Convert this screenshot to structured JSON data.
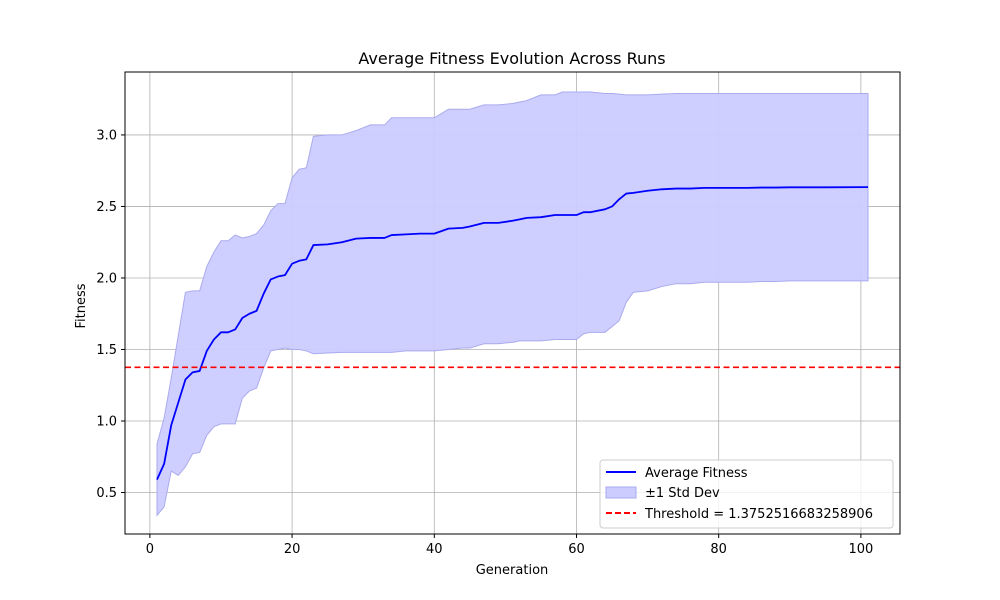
{
  "chart_data": {
    "type": "line",
    "title": "Average Fitness Evolution Across Runs",
    "xlabel": "Generation",
    "ylabel": "Fitness",
    "xlim": [
      -3.5,
      105.5
    ],
    "ylim": [
      0.21,
      3.44
    ],
    "xticks": [
      0,
      20,
      40,
      60,
      80,
      100
    ],
    "xtick_labels": [
      "0",
      "20",
      "40",
      "60",
      "80",
      "100"
    ],
    "yticks": [
      0.5,
      1.0,
      1.5,
      2.0,
      2.5,
      3.0
    ],
    "ytick_labels": [
      "0.5",
      "1.0",
      "1.5",
      "2.0",
      "2.5",
      "3.0"
    ],
    "grid": true,
    "legend_position": "lower-right",
    "colors": {
      "mean": "#0000ff",
      "band": "#ccccff",
      "band_edge": "#aaaaee",
      "threshold": "#ff0000"
    },
    "series": [
      {
        "name": "Average Fitness",
        "type": "line",
        "x": [
          1,
          2,
          3,
          4,
          5,
          6,
          7,
          8,
          9,
          10,
          11,
          12,
          13,
          14,
          15,
          16,
          17,
          18,
          19,
          20,
          21,
          22,
          23,
          25,
          27,
          29,
          31,
          33,
          34,
          36,
          38,
          40,
          42,
          44,
          45,
          47,
          49,
          51,
          52,
          53,
          55,
          57,
          58,
          60,
          61,
          62,
          64,
          65,
          66,
          67,
          68,
          70,
          72,
          74,
          76,
          78,
          80,
          82,
          84,
          86,
          88,
          90,
          95,
          101
        ],
        "y": [
          0.59,
          0.7,
          0.97,
          1.13,
          1.29,
          1.34,
          1.35,
          1.49,
          1.57,
          1.62,
          1.62,
          1.64,
          1.72,
          1.75,
          1.77,
          1.89,
          1.99,
          2.01,
          2.02,
          2.1,
          2.12,
          2.13,
          2.23,
          2.235,
          2.25,
          2.275,
          2.28,
          2.28,
          2.3,
          2.305,
          2.31,
          2.31,
          2.345,
          2.35,
          2.36,
          2.385,
          2.385,
          2.4,
          2.41,
          2.42,
          2.425,
          2.44,
          2.44,
          2.44,
          2.46,
          2.46,
          2.48,
          2.5,
          2.55,
          2.59,
          2.595,
          2.61,
          2.62,
          2.625,
          2.625,
          2.63,
          2.63,
          2.63,
          2.63,
          2.632,
          2.632,
          2.634,
          2.634,
          2.635
        ]
      },
      {
        "name": "±1 Std Dev",
        "type": "band",
        "x": [
          1,
          2,
          3,
          4,
          5,
          6,
          7,
          8,
          9,
          10,
          11,
          12,
          13,
          14,
          15,
          16,
          17,
          18,
          19,
          20,
          21,
          22,
          23,
          25,
          27,
          29,
          31,
          33,
          34,
          36,
          38,
          40,
          42,
          44,
          45,
          47,
          49,
          51,
          52,
          53,
          55,
          57,
          58,
          60,
          61,
          62,
          64,
          65,
          66,
          67,
          68,
          70,
          72,
          74,
          76,
          78,
          80,
          82,
          84,
          86,
          88,
          90,
          95,
          101
        ],
        "lower": [
          0.34,
          0.4,
          0.65,
          0.62,
          0.68,
          0.77,
          0.78,
          0.9,
          0.96,
          0.98,
          0.98,
          0.98,
          1.16,
          1.21,
          1.23,
          1.37,
          1.49,
          1.5,
          1.51,
          1.5,
          1.5,
          1.49,
          1.47,
          1.475,
          1.48,
          1.48,
          1.48,
          1.48,
          1.48,
          1.49,
          1.49,
          1.49,
          1.5,
          1.51,
          1.51,
          1.54,
          1.54,
          1.55,
          1.56,
          1.56,
          1.56,
          1.57,
          1.57,
          1.57,
          1.61,
          1.62,
          1.62,
          1.66,
          1.7,
          1.83,
          1.9,
          1.91,
          1.94,
          1.96,
          1.96,
          1.97,
          1.97,
          1.97,
          1.97,
          1.975,
          1.975,
          1.98,
          1.98,
          1.98
        ],
        "upper": [
          0.84,
          1.02,
          1.3,
          1.6,
          1.9,
          1.91,
          1.91,
          2.08,
          2.18,
          2.26,
          2.26,
          2.3,
          2.28,
          2.29,
          2.31,
          2.37,
          2.47,
          2.52,
          2.52,
          2.7,
          2.76,
          2.77,
          2.99,
          3.0,
          3.0,
          3.03,
          3.07,
          3.07,
          3.12,
          3.12,
          3.12,
          3.12,
          3.18,
          3.18,
          3.18,
          3.21,
          3.21,
          3.22,
          3.23,
          3.24,
          3.28,
          3.28,
          3.3,
          3.3,
          3.3,
          3.3,
          3.29,
          3.29,
          3.285,
          3.28,
          3.28,
          3.28,
          3.285,
          3.29,
          3.29,
          3.29,
          3.29,
          3.29,
          3.29,
          3.29,
          3.29,
          3.29,
          3.29,
          3.29
        ]
      }
    ],
    "threshold": {
      "name": "Threshold = 1.3752516683258906",
      "value": 1.3752516683258906
    }
  }
}
